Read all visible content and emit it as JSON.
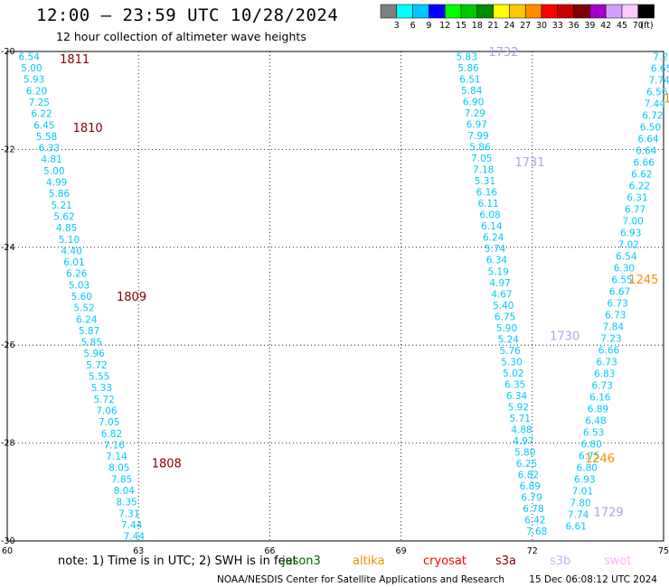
{
  "header": {
    "title": "12:00 – 23:59 UTC 10/28/2024",
    "subtitle": "12 hour collection of altimeter wave heights"
  },
  "legend": {
    "unit": "(ft)",
    "bins": [
      {
        "label": "3",
        "color": "#7f7f7f"
      },
      {
        "label": "6",
        "color": "#00ffff"
      },
      {
        "label": "9",
        "color": "#00c8ff"
      },
      {
        "label": "12",
        "color": "#0000ff"
      },
      {
        "label": "15",
        "color": "#00ff00"
      },
      {
        "label": "18",
        "color": "#00c800"
      },
      {
        "label": "21",
        "color": "#008c00"
      },
      {
        "label": "24",
        "color": "#ffff00"
      },
      {
        "label": "27",
        "color": "#ffc800"
      },
      {
        "label": "30",
        "color": "#ff8c00"
      },
      {
        "label": "33",
        "color": "#ff0000"
      },
      {
        "label": "36",
        "color": "#c80000"
      },
      {
        "label": "39",
        "color": "#800000"
      },
      {
        "label": "42",
        "color": "#a000c8"
      },
      {
        "label": "45",
        "color": "#d2a0ff"
      },
      {
        "label": "70",
        "color": "#ffc8ff"
      },
      {
        "label": "",
        "color": "#000000"
      }
    ]
  },
  "map": {
    "lon_labels": [
      "60",
      "63",
      "66",
      "69",
      "72",
      "75"
    ],
    "lat_labels": [
      "-20",
      "-22",
      "-24",
      "-26",
      "-28",
      "-30"
    ],
    "lon_range": [
      60,
      75
    ],
    "lat_range": [
      -20,
      -30
    ]
  },
  "colors": {
    "jason": "#00c8ff",
    "saral": "#800000",
    "sentinel6": "#b4a0e6",
    "cryosat": "#ff8c00"
  },
  "tracks": [
    {
      "name": "track-a",
      "color_key": "jason",
      "lon": [
        60.5,
        62.9
      ],
      "lat": [
        -20.1,
        -29.9
      ],
      "values": [
        "6.54",
        "5.00",
        "5.93",
        "6.20",
        "7.25",
        "6.22",
        "6.45",
        "5.58",
        "6.33",
        "4.81",
        "5.00",
        "4.99",
        "5.86",
        "5.21",
        "5.62",
        "4.85",
        "5.10",
        "4.40",
        "6.01",
        "6.26",
        "5.03",
        "5.60",
        "5.52",
        "6.24",
        "5.87",
        "5.85",
        "5.96",
        "5.72",
        "5.55",
        "5.33",
        "5.72",
        "7.06",
        "7.05",
        "6.82",
        "7.16",
        "7.14",
        "8.05",
        "7.85",
        "8.04",
        "8.35",
        "7.31",
        "7.44",
        "7.44"
      ]
    },
    {
      "name": "track-b",
      "color_key": "jason",
      "lon": [
        70.5,
        72.1
      ],
      "lat": [
        -20.1,
        -29.8
      ],
      "values": [
        "5.83",
        "5.86",
        "6.51",
        "5.84",
        "6.90",
        "7.29",
        "6.97",
        "7.99",
        "5.86",
        "7.05",
        "7.18",
        "5.31",
        "6.16",
        "6.11",
        "6.08",
        "6.14",
        "6.24",
        "5.74",
        "6.34",
        "5.19",
        "4.97",
        "4.67",
        "5.40",
        "6.75",
        "5.90",
        "5.24",
        "5.76",
        "5.30",
        "5.02",
        "6.35",
        "6.34",
        "5.92",
        "5.71",
        "4.88",
        "4.97",
        "5.80",
        "6.25",
        "6.82",
        "6.89",
        "6.79",
        "6.78",
        "6.42",
        "7.68"
      ]
    },
    {
      "name": "track-c",
      "color_key": "jason",
      "lon": [
        75.0,
        73.0
      ],
      "lat": [
        -20.1,
        -29.7
      ],
      "values": [
        "7.23",
        "6.65",
        "7.74",
        "6.56",
        "7.44",
        "6.72",
        "6.50",
        "6.64",
        "6.64",
        "6.66",
        "6.62",
        "6.22",
        "6.31",
        "6.77",
        "7.00",
        "6.93",
        "7.02",
        "6.54",
        "6.30",
        "6.55",
        "6.67",
        "6.73",
        "6.73",
        "7.84",
        "7.23",
        "6.66",
        "6.73",
        "6.83",
        "6.73",
        "6.16",
        "6.89",
        "6.48",
        "6.53",
        "6.80",
        "6.75",
        "6.80",
        "6.93",
        "7.01",
        "7.80",
        "7.74",
        "6.61"
      ]
    }
  ],
  "time_labels": [
    {
      "text": "1811",
      "color_key": "saral",
      "lon": 61.2,
      "lat": -20.15
    },
    {
      "text": "1810",
      "color_key": "saral",
      "lon": 61.5,
      "lat": -21.55
    },
    {
      "text": "1809",
      "color_key": "saral",
      "lon": 62.5,
      "lat": -25.0
    },
    {
      "text": "1808",
      "color_key": "saral",
      "lon": 63.3,
      "lat": -28.4
    },
    {
      "text": "1732",
      "color_key": "sentinel6",
      "lon": 71.0,
      "lat": -20.0
    },
    {
      "text": "1731",
      "color_key": "sentinel6",
      "lon": 71.6,
      "lat": -22.25
    },
    {
      "text": "1730",
      "color_key": "sentinel6",
      "lon": 72.4,
      "lat": -25.8
    },
    {
      "text": "1729",
      "color_key": "sentinel6",
      "lon": 73.4,
      "lat": -29.4
    },
    {
      "text": "1245",
      "color_key": "cryosat",
      "lon": 74.2,
      "lat": -24.65
    },
    {
      "text": "1246",
      "color_key": "cryosat",
      "lon": 73.2,
      "lat": -28.3
    },
    {
      "text": "1",
      "color_key": "cryosat",
      "lon": 75.0,
      "lat": -20.95
    }
  ],
  "footer": {
    "note": "note:  1) Time is in UTC; 2) SWH is in feet",
    "satellites": [
      {
        "text": "jason3",
        "color": "#006400"
      },
      {
        "text": "altika",
        "color": "#ff8c00"
      },
      {
        "text": "cryosat",
        "color": "#ff0000"
      },
      {
        "text": "s3a",
        "color": "#800000"
      },
      {
        "text": "s3b",
        "color": "#c8b4f0"
      },
      {
        "text": "swot",
        "color": "#ffb4ff"
      }
    ],
    "credit": "NOAA/NESDIS Center for Satellite Applications and Research",
    "timestamp": "15 Dec 06:08:12 UTC 2024"
  }
}
